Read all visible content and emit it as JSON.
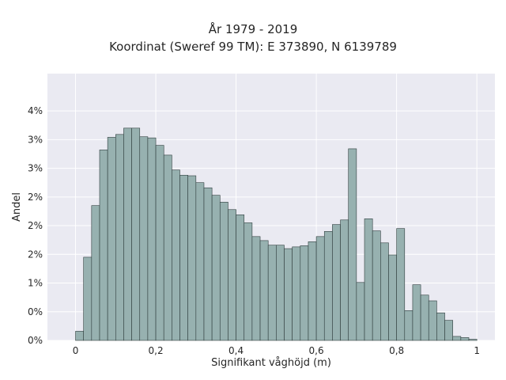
{
  "chart_data": {
    "type": "bar",
    "title": "År 1979 - 2019",
    "subtitle": "Koordinat (Sweref 99 TM): E 373890, N 6139789",
    "xlabel": "Signifikant våghöjd (m)",
    "ylabel": "Andel",
    "xlim": [
      -0.07,
      1.045
    ],
    "ylim": [
      0,
      0.0465
    ],
    "x_ticks": [
      0,
      0.2,
      0.4,
      0.6,
      0.8,
      1.0
    ],
    "x_tick_labels": [
      "0",
      "0,2",
      "0,4",
      "0,6",
      "0,8",
      "1"
    ],
    "y_ticks": [
      0,
      0.005,
      0.01,
      0.015,
      0.02,
      0.025,
      0.03,
      0.035,
      0.04
    ],
    "y_tick_labels": [
      "0%",
      "0%",
      "1%",
      "2%",
      "2%",
      "2%",
      "3%",
      "3%",
      "4%"
    ],
    "grid": true,
    "background_color": "#eaeaf2",
    "bar_color": "#97b1b0",
    "edge_color": "#2f3d3d",
    "bin_width": 0.02,
    "bin_starts": [
      0.0,
      0.02,
      0.04,
      0.06,
      0.08,
      0.1,
      0.12,
      0.14,
      0.16,
      0.18,
      0.2,
      0.22,
      0.24,
      0.26,
      0.28,
      0.3,
      0.32,
      0.34,
      0.36,
      0.38,
      0.4,
      0.42,
      0.44,
      0.46,
      0.48,
      0.5,
      0.52,
      0.54,
      0.56,
      0.58,
      0.6,
      0.62,
      0.64,
      0.66,
      0.68,
      0.7,
      0.72,
      0.74,
      0.76,
      0.78,
      0.8,
      0.82,
      0.84,
      0.86,
      0.88,
      0.9,
      0.92,
      0.94,
      0.96,
      0.98
    ],
    "values": [
      0.0016,
      0.0145,
      0.0235,
      0.0332,
      0.0354,
      0.0359,
      0.037,
      0.037,
      0.0355,
      0.0353,
      0.034,
      0.0323,
      0.0297,
      0.0288,
      0.0287,
      0.0275,
      0.0266,
      0.0253,
      0.0241,
      0.0228,
      0.0219,
      0.0205,
      0.0181,
      0.0174,
      0.0166,
      0.0166,
      0.016,
      0.0163,
      0.0165,
      0.0172,
      0.0181,
      0.019,
      0.0202,
      0.021,
      0.0334,
      0.0101,
      0.0212,
      0.0191,
      0.017,
      0.0149,
      0.0195,
      0.0052,
      0.0097,
      0.0079,
      0.0069,
      0.0048,
      0.0035,
      0.0007,
      0.0005,
      0.0002
    ]
  }
}
